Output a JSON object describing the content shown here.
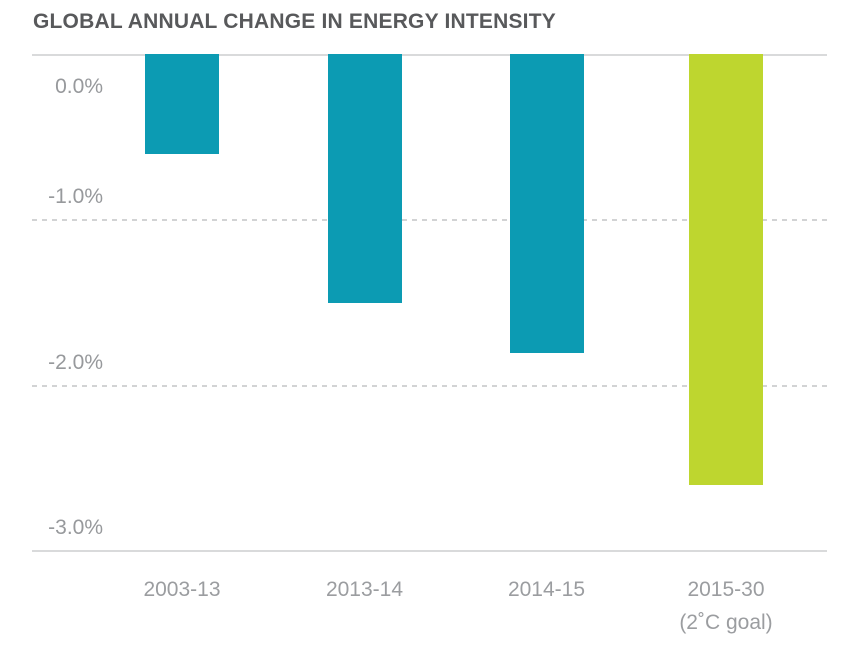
{
  "title": "GLOBAL ANNUAL CHANGE IN ENERGY INTENSITY",
  "chart_data": {
    "type": "bar",
    "title": "GLOBAL ANNUAL CHANGE IN ENERGY INTENSITY",
    "unit": "% annual change in energy intensity",
    "categories": [
      "2003-13",
      "2013-14",
      "2014-15",
      "2015-30"
    ],
    "category_sublabels": [
      "",
      "",
      "",
      "(2˚C goal)"
    ],
    "values": [
      -0.6,
      -1.5,
      -1.8,
      -2.6
    ],
    "bar_colors": [
      "#0c9bb3",
      "#0c9bb3",
      "#0c9bb3",
      "#bed62f"
    ],
    "ylim": [
      -3,
      0
    ],
    "yticks": [
      {
        "value": 0,
        "label": "0.0%",
        "line": "solid"
      },
      {
        "value": -1,
        "label": "-1.0%",
        "line": "dashed"
      },
      {
        "value": -2,
        "label": "-2.0%",
        "line": "dashed"
      },
      {
        "value": -3,
        "label": "-3.0%",
        "line": "solid"
      }
    ],
    "grid": "horizontal",
    "legend": "none",
    "xlabel": "",
    "ylabel": ""
  },
  "colors": {
    "teal": "#0c9bb3",
    "green": "#bed62f",
    "title_text": "#58595b",
    "axis_text": "#97999c",
    "grid_solid": "#d9dadb",
    "grid_dashed": "#d2d3d4",
    "background": "#ffffff"
  }
}
